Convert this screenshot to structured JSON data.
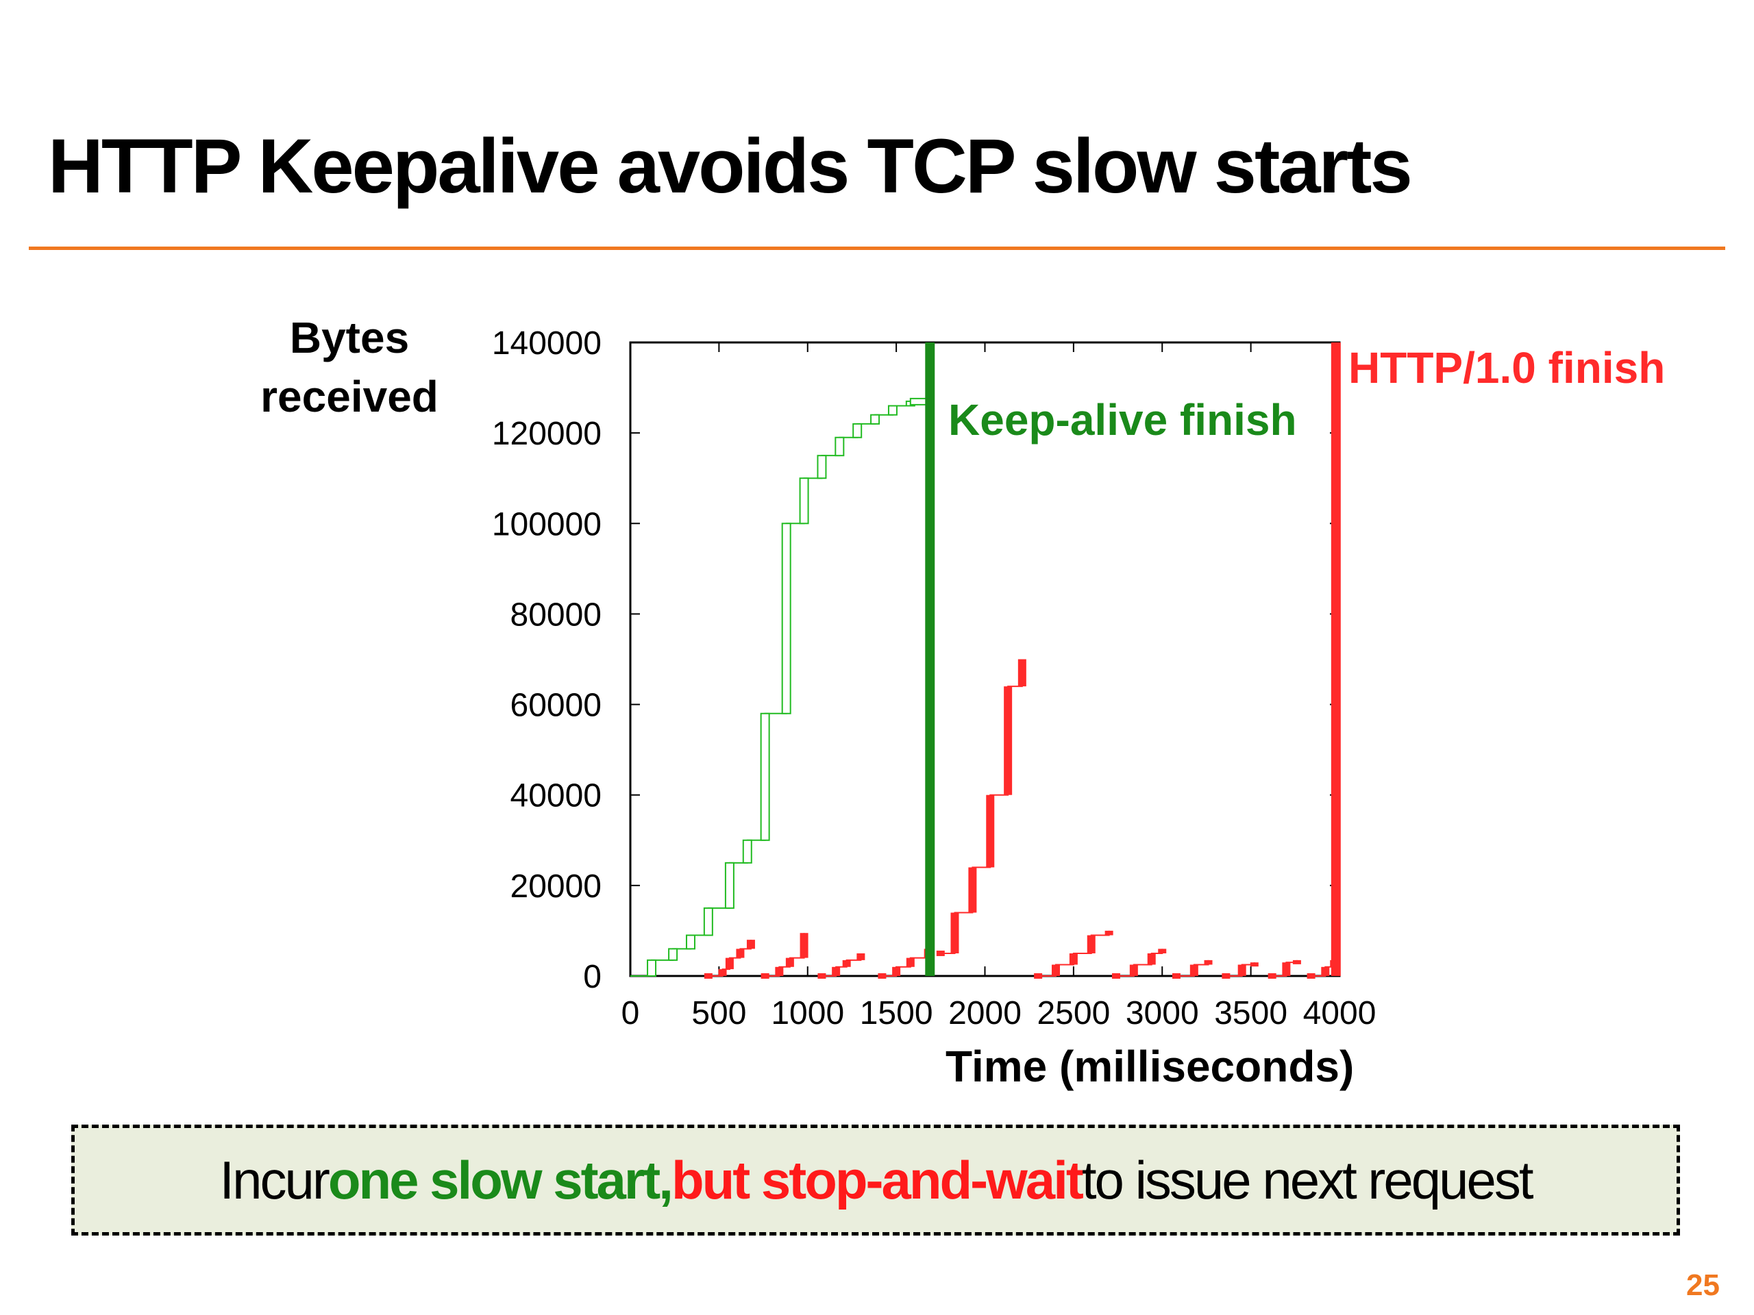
{
  "slide": {
    "title": "HTTP Keepalive avoids TCP slow starts",
    "page_number": "25",
    "accent_color": "#f07820"
  },
  "callout": {
    "part1": "Incur ",
    "part2": "one slow start,",
    "part3": " but stop-and-wait",
    "part4": " to issue next request",
    "green_color": "#1a8a1a",
    "red_color": "#ff1a1a",
    "background": "#eaeedd"
  },
  "chart_data": {
    "type": "line",
    "ylabel": "Bytes received",
    "xlabel": "Time (milliseconds)",
    "xlim": [
      0,
      4000
    ],
    "ylim": [
      0,
      140000
    ],
    "xticks": [
      0,
      500,
      1000,
      1500,
      2000,
      2500,
      3000,
      3500,
      4000
    ],
    "yticks": [
      0,
      20000,
      40000,
      60000,
      80000,
      100000,
      120000,
      140000
    ],
    "grid": false,
    "annotations": [
      {
        "text": "Keep-alive finish",
        "x": 1690,
        "color": "#1a8a1a"
      },
      {
        "text": "HTTP/1.0 finish",
        "x": 3980,
        "color": "#ff2a2a"
      }
    ],
    "series": [
      {
        "color": "#22bb22",
        "points": [
          [
            0,
            0
          ],
          [
            120,
            3500
          ],
          [
            240,
            6000
          ],
          [
            340,
            9000
          ],
          [
            440,
            15000
          ],
          [
            560,
            25000
          ],
          [
            660,
            30000
          ],
          [
            760,
            58000
          ],
          [
            880,
            100000
          ],
          [
            980,
            110000
          ],
          [
            1080,
            115000
          ],
          [
            1180,
            119000
          ],
          [
            1280,
            122000
          ],
          [
            1380,
            124000
          ],
          [
            1480,
            126000
          ],
          [
            1580,
            127000
          ]
        ]
      },
      {
        "color": "#ff2a2a",
        "segments": [
          [
            [
              440,
              0
            ],
            [
              520,
              1500
            ],
            [
              560,
              4000
            ],
            [
              620,
              6000
            ],
            [
              680,
              8000
            ]
          ],
          [
            [
              760,
              0
            ],
            [
              840,
              2000
            ],
            [
              900,
              4000
            ],
            [
              980,
              9500
            ]
          ],
          [
            [
              1080,
              0
            ],
            [
              1160,
              2000
            ],
            [
              1220,
              3500
            ],
            [
              1300,
              5000
            ]
          ],
          [
            [
              1420,
              0
            ],
            [
              1500,
              2000
            ],
            [
              1580,
              4000
            ],
            [
              1680,
              6000
            ]
          ],
          [
            [
              1750,
              5000
            ],
            [
              1830,
              14000
            ],
            [
              1930,
              24000
            ],
            [
              2030,
              40000
            ],
            [
              2130,
              64000
            ],
            [
              2210,
              70000
            ]
          ]
        ]
      },
      {
        "color": "#ff2a2a",
        "segments": [
          [
            [
              2300,
              0
            ],
            [
              2400,
              2500
            ],
            [
              2500,
              5000
            ],
            [
              2600,
              9000
            ],
            [
              2700,
              10000
            ]
          ],
          [
            [
              2740,
              0
            ],
            [
              2840,
              2500
            ],
            [
              2940,
              5000
            ],
            [
              3000,
              6000
            ]
          ],
          [
            [
              3080,
              0
            ],
            [
              3180,
              2500
            ],
            [
              3260,
              3500
            ]
          ],
          [
            [
              3360,
              0
            ],
            [
              3450,
              2500
            ],
            [
              3520,
              3000
            ]
          ],
          [
            [
              3620,
              0
            ],
            [
              3700,
              3000
            ],
            [
              3760,
              3500
            ]
          ],
          [
            [
              3840,
              0
            ],
            [
              3920,
              2000
            ],
            [
              3970,
              3500
            ]
          ]
        ]
      }
    ]
  }
}
